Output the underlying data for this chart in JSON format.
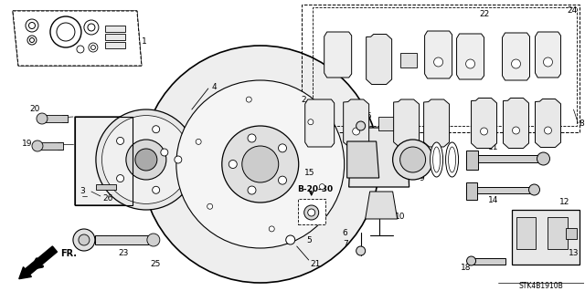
{
  "background_color": "#ffffff",
  "diagram_code": "STK4B1910B",
  "page_ref": "B-20-30",
  "fig_w": 6.4,
  "fig_h": 3.19,
  "dpi": 100
}
